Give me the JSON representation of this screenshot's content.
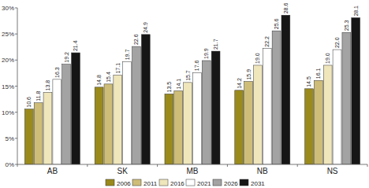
{
  "chart_data": {
    "type": "bar",
    "categories": [
      "AB",
      "SK",
      "MB",
      "NB",
      "NS"
    ],
    "series": [
      {
        "name": "2006",
        "color": "#9a8a1c",
        "values": [
          10.6,
          14.8,
          13.5,
          14.2,
          14.5
        ],
        "value_labels": [
          "10.6",
          "14.8",
          "13.5",
          "14.2",
          "14.5"
        ]
      },
      {
        "name": "2011",
        "color": "#cdbd78",
        "values": [
          11.8,
          15.4,
          14.1,
          15.9,
          16.1
        ],
        "value_labels": [
          "11.8",
          "15.4",
          "14.1",
          "15.9",
          "16.1"
        ]
      },
      {
        "name": "2016",
        "color": "#efe6bc",
        "values": [
          13.8,
          17.1,
          15.7,
          19.0,
          19.0
        ],
        "value_labels": [
          "13.8",
          "17.1",
          "15.7",
          "19.0",
          "19.0"
        ]
      },
      {
        "name": "2021",
        "color": "#ffffff",
        "values": [
          16.3,
          19.7,
          17.6,
          22.2,
          22.0
        ],
        "value_labels": [
          "16.3",
          "19.7",
          "17.6",
          "22.2",
          "22.0"
        ]
      },
      {
        "name": "2026",
        "color": "#a3a3a3",
        "values": [
          19.2,
          22.6,
          19.9,
          25.6,
          25.3
        ],
        "value_labels": [
          "19.2",
          "22.6",
          "19.9",
          "25.6",
          "25.3"
        ]
      },
      {
        "name": "2031",
        "color": "#161616",
        "values": [
          21.4,
          24.9,
          21.7,
          28.6,
          28.1
        ],
        "value_labels": [
          "21.4",
          "24.9",
          "21.7",
          "28.6",
          "28.1"
        ]
      }
    ],
    "ylim": [
      0,
      30
    ],
    "yticks": [
      {
        "value": 0,
        "label": "0%"
      },
      {
        "value": 5,
        "label": "5%"
      },
      {
        "value": 10,
        "label": "10%"
      },
      {
        "value": 15,
        "label": "15%"
      },
      {
        "value": 20,
        "label": "20%"
      },
      {
        "value": 25,
        "label": "25%"
      },
      {
        "value": 30,
        "label": "30%"
      }
    ],
    "grid": false,
    "legend": "bottom",
    "data_labels": true
  }
}
